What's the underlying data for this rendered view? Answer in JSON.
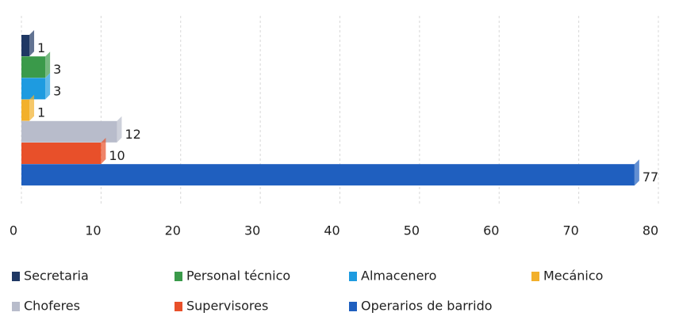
{
  "chart_data": {
    "type": "bar",
    "orientation": "horizontal",
    "categories": [
      "Secretaria",
      "Personal técnico",
      "Almacenero",
      "Mecánico",
      "Choferes",
      "Supervisores",
      "Operarios de barrido"
    ],
    "values": [
      1,
      3,
      3,
      1,
      12,
      10,
      77
    ],
    "colors": [
      "#1f3864",
      "#3a9a4a",
      "#1e9be0",
      "#f2b02b",
      "#b8bccb",
      "#e8502a",
      "#1f5fbf"
    ],
    "xlim": [
      0,
      80
    ],
    "xticks": [
      0,
      10,
      20,
      30,
      40,
      50,
      60,
      70,
      80
    ],
    "grid": true
  }
}
